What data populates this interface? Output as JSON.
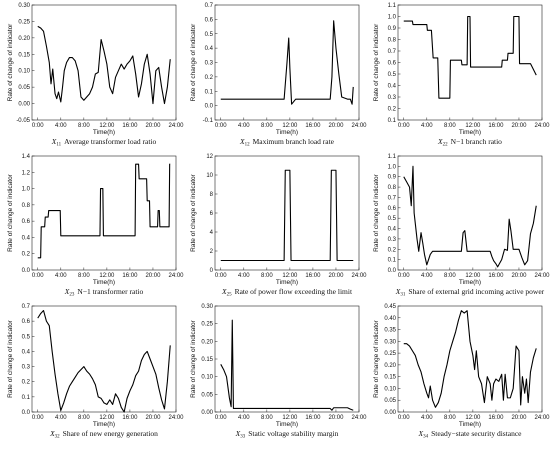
{
  "chart_data": [
    {
      "type": "line",
      "caption": {
        "sym": "X",
        "sub": "11",
        "text": "Average transformer load ratio"
      },
      "xlabel": "Time(h)",
      "ylabel": "Rate of change of indicator",
      "xlim": [
        -1,
        24
      ],
      "ylim": [
        -0.05,
        0.3
      ],
      "yticks": [
        "-0.05",
        "0.00",
        "0.05",
        "0.10",
        "0.15",
        "0.20",
        "0.25",
        "0.30"
      ],
      "ytick_values": [
        -0.05,
        0,
        0.05,
        0.1,
        0.15,
        0.2,
        0.25,
        0.3
      ],
      "xticks": [
        "0:00",
        "4:00",
        "8:00",
        "12:00",
        "16:00",
        "20:00",
        "24:00"
      ],
      "xtick_values": [
        0,
        4,
        8,
        12,
        16,
        20,
        24
      ],
      "x": [
        0,
        0.5,
        1,
        1.5,
        2,
        2.3,
        2.6,
        3,
        3.3,
        3.6,
        4,
        4.3,
        4.6,
        5,
        5.5,
        6,
        6.5,
        7,
        7.5,
        8,
        8.5,
        9,
        9.5,
        10,
        10.5,
        11,
        11.5,
        12,
        12.5,
        13,
        13.5,
        14,
        14.5,
        15,
        15.5,
        16,
        16.5,
        17,
        17.5,
        18,
        18.5,
        19,
        19.5,
        20,
        20.5,
        21,
        21.5,
        22,
        22.5,
        23
      ],
      "y": [
        0.235,
        0.23,
        0.22,
        0.175,
        0.125,
        0.06,
        0.105,
        0.03,
        0.015,
        0.035,
        0.005,
        0.05,
        0.1,
        0.125,
        0.14,
        0.14,
        0.13,
        0.1,
        0.02,
        0.01,
        0.02,
        0.03,
        0.05,
        0.09,
        0.095,
        0.195,
        0.16,
        0.12,
        0.05,
        0.03,
        0.08,
        0.1,
        0.12,
        0.105,
        0.12,
        0.13,
        0.145,
        0.09,
        0.02,
        0.06,
        0.12,
        0.15,
        0.09,
        0.0,
        0.1,
        0.11,
        0.05,
        0.0,
        0.05,
        0.135
      ]
    },
    {
      "type": "line",
      "caption": {
        "sym": "X",
        "sub": "12",
        "text": "Maximum branch load rate"
      },
      "xlabel": "Time(h)",
      "ylabel": "Rate of change of indicator",
      "xlim": [
        -1,
        24
      ],
      "ylim": [
        -0.1,
        0.7
      ],
      "yticks": [
        "-0.1",
        "0.0",
        "0.1",
        "0.2",
        "0.3",
        "0.4",
        "0.5",
        "0.6",
        "0.7"
      ],
      "ytick_values": [
        -0.1,
        0,
        0.1,
        0.2,
        0.3,
        0.4,
        0.5,
        0.6,
        0.7
      ],
      "xticks": [
        "0:00",
        "4:00",
        "8:00",
        "12:00",
        "16:00",
        "20:00",
        "24:00"
      ],
      "xtick_values": [
        0,
        4,
        8,
        12,
        16,
        20,
        24
      ],
      "x": [
        0,
        11,
        11.5,
        11.8,
        12,
        12.3,
        13,
        19,
        19.3,
        19.6,
        20,
        20.5,
        21,
        22,
        22.5,
        22.8,
        23
      ],
      "y": [
        0.045,
        0.045,
        0.3,
        0.47,
        0.26,
        0.01,
        0.045,
        0.045,
        0.2,
        0.59,
        0.4,
        0.22,
        0.06,
        0.045,
        0.045,
        0.01,
        0.13
      ]
    },
    {
      "type": "line",
      "caption": {
        "sym": "X",
        "sub": "22",
        "text": "N−1 branch ratio"
      },
      "xlabel": "Time(h)",
      "ylabel": "Rate of change of indicator",
      "xlim": [
        -1,
        24
      ],
      "ylim": [
        0.1,
        1.1
      ],
      "yticks": [
        "0.1",
        "0.2",
        "0.3",
        "0.4",
        "0.5",
        "0.6",
        "0.7",
        "0.8",
        "0.9",
        "1.0",
        "1.1"
      ],
      "ytick_values": [
        0.1,
        0.2,
        0.3,
        0.4,
        0.5,
        0.6,
        0.7,
        0.8,
        0.9,
        1.0,
        1.1
      ],
      "xticks": [
        "0:00",
        "4:00",
        "8:00",
        "12:00",
        "16:00",
        "20:00",
        "24:00"
      ],
      "xtick_values": [
        0,
        4,
        8,
        12,
        16,
        20,
        24
      ],
      "x": [
        0,
        1.5,
        1.6,
        4,
        4.1,
        4.8,
        5.1,
        5.9,
        6.1,
        8,
        8.1,
        10,
        10.1,
        11,
        11.1,
        11.5,
        11.6,
        17,
        17.1,
        18,
        18.1,
        19,
        19.1,
        20,
        20.1,
        22,
        22.1,
        23
      ],
      "y": [
        0.96,
        0.96,
        0.93,
        0.93,
        0.88,
        0.88,
        0.64,
        0.64,
        0.29,
        0.29,
        0.62,
        0.62,
        0.58,
        0.58,
        1.0,
        1.0,
        0.56,
        0.56,
        0.62,
        0.62,
        0.68,
        0.68,
        1.0,
        1.0,
        0.59,
        0.59,
        0.58,
        0.49
      ]
    },
    {
      "type": "line",
      "caption": {
        "sym": "X",
        "sub": "23",
        "text": "N−1 transformer ratio"
      },
      "xlabel": "Time(h)",
      "ylabel": "Rate of change of indicator",
      "xlim": [
        -1,
        24
      ],
      "ylim": [
        0,
        1.4
      ],
      "yticks": [
        "0.0",
        "0.2",
        "0.4",
        "0.6",
        "0.8",
        "1.0",
        "1.2",
        "1.4"
      ],
      "ytick_values": [
        0,
        0.2,
        0.4,
        0.6,
        0.8,
        1.0,
        1.2,
        1.4
      ],
      "xticks": [
        "0:00",
        "4:00",
        "8:00",
        "12:00",
        "16:00",
        "20:00",
        "24:00"
      ],
      "xtick_values": [
        0,
        4,
        8,
        12,
        16,
        20,
        24
      ],
      "x": [
        0,
        0.5,
        0.6,
        1.2,
        1.3,
        1.8,
        1.9,
        3.9,
        4.0,
        10.8,
        10.9,
        11.3,
        11.4,
        16.9,
        17.0,
        17.5,
        17.6,
        18.3,
        18.4,
        18.9,
        19.0,
        19.4,
        19.5,
        20.8,
        20.9,
        21.1,
        21.2,
        22.8,
        22.9,
        23
      ],
      "y": [
        0.15,
        0.15,
        0.53,
        0.53,
        0.65,
        0.65,
        0.73,
        0.73,
        0.42,
        0.42,
        1.0,
        1.0,
        0.42,
        0.42,
        1.3,
        1.3,
        1.12,
        1.12,
        1.12,
        1.12,
        0.85,
        0.85,
        0.53,
        0.53,
        0.73,
        0.73,
        0.53,
        0.53,
        1.3,
        1.3
      ]
    },
    {
      "type": "line",
      "caption": {
        "sym": "X",
        "sub": "25",
        "text": "Rate of power flow exceeding the limit"
      },
      "xlabel": "Time(h)",
      "ylabel": "Rate of change of indicator",
      "xlim": [
        -1,
        24
      ],
      "ylim": [
        0,
        12
      ],
      "yticks": [
        "0",
        "2",
        "4",
        "6",
        "8",
        "10",
        "12"
      ],
      "ytick_values": [
        0,
        2,
        4,
        6,
        8,
        10,
        12
      ],
      "xticks": [
        "0:00",
        "4:00",
        "8:00",
        "12:00",
        "16:00",
        "20:00",
        "24:00"
      ],
      "xtick_values": [
        0,
        4,
        8,
        12,
        16,
        20,
        24
      ],
      "x": [
        0,
        11,
        11.2,
        12,
        12.2,
        19,
        19.2,
        20,
        20.2,
        23
      ],
      "y": [
        1,
        1,
        10.5,
        10.5,
        1,
        1,
        10.5,
        10.5,
        1,
        1
      ]
    },
    {
      "type": "line",
      "caption": {
        "sym": "X",
        "sub": "31",
        "text": "Share of external grid incoming active power"
      },
      "xlabel": "Time(h)",
      "ylabel": "Rate of change of indicator",
      "xlim": [
        -1,
        24
      ],
      "ylim": [
        0,
        1.1
      ],
      "yticks": [
        "0.0",
        "0.1",
        "0.2",
        "0.3",
        "0.4",
        "0.5",
        "0.6",
        "0.7",
        "0.8",
        "0.9",
        "1.0",
        "1.1"
      ],
      "ytick_values": [
        0,
        0.1,
        0.2,
        0.3,
        0.4,
        0.5,
        0.6,
        0.7,
        0.8,
        0.9,
        1.0,
        1.1
      ],
      "xticks": [
        "0:00",
        "4:00",
        "8:00",
        "12:00",
        "16:00",
        "20:00",
        "24:00"
      ],
      "xtick_values": [
        0,
        4,
        8,
        12,
        16,
        20,
        24
      ],
      "x": [
        0,
        0.5,
        1,
        1.3,
        1.6,
        1.8,
        2,
        2.3,
        2.6,
        3,
        3.3,
        3.6,
        4,
        4.3,
        4.6,
        5,
        10,
        10.3,
        10.6,
        11,
        15,
        15.3,
        15.6,
        16,
        16.3,
        16.6,
        17,
        17.5,
        18,
        18.3,
        18.6,
        19,
        20,
        20.5,
        21,
        21.5,
        22,
        22.5,
        23
      ],
      "y": [
        0.9,
        0.85,
        0.8,
        0.62,
        1.0,
        0.55,
        0.45,
        0.3,
        0.18,
        0.36,
        0.26,
        0.15,
        0.05,
        0.1,
        0.15,
        0.18,
        0.18,
        0.36,
        0.38,
        0.18,
        0.18,
        0.13,
        0.09,
        0.06,
        0.03,
        0.06,
        0.1,
        0.2,
        0.19,
        0.49,
        0.38,
        0.2,
        0.2,
        0.12,
        0.05,
        0.09,
        0.35,
        0.45,
        0.62
      ]
    },
    {
      "type": "line",
      "caption": {
        "sym": "X",
        "sub": "32",
        "text": "Share of new energy generation"
      },
      "xlabel": "Time(h)",
      "ylabel": "Rate of change of indicator",
      "xlim": [
        -1,
        24
      ],
      "ylim": [
        0,
        0.7
      ],
      "yticks": [
        "0.0",
        "0.1",
        "0.2",
        "0.3",
        "0.4",
        "0.5",
        "0.6",
        "0.7"
      ],
      "ytick_values": [
        0,
        0.1,
        0.2,
        0.3,
        0.4,
        0.5,
        0.6,
        0.7
      ],
      "xticks": [
        "0:00",
        "4:00",
        "8:00",
        "12:00",
        "16:00",
        "20:00",
        "24:00"
      ],
      "xtick_values": [
        0,
        4,
        8,
        12,
        16,
        20,
        24
      ],
      "x": [
        0,
        0.5,
        1,
        1.5,
        2,
        2.5,
        3,
        3.5,
        4,
        4.5,
        5,
        5.5,
        6,
        6.5,
        7,
        7.5,
        8,
        8.5,
        9,
        9.5,
        10,
        10.5,
        11,
        11.5,
        12,
        12.5,
        13,
        13.5,
        14,
        14.5,
        15,
        15.5,
        16,
        16.5,
        17,
        17.5,
        18,
        18.5,
        19,
        19.5,
        20,
        20.5,
        21,
        21.5,
        22,
        22.5,
        23
      ],
      "y": [
        0.62,
        0.65,
        0.67,
        0.6,
        0.57,
        0.4,
        0.25,
        0.12,
        0.01,
        0.06,
        0.12,
        0.17,
        0.2,
        0.23,
        0.26,
        0.28,
        0.3,
        0.27,
        0.25,
        0.22,
        0.18,
        0.1,
        0.09,
        0.06,
        0.05,
        0.08,
        0.05,
        0.12,
        0.09,
        0.03,
        0.0,
        0.09,
        0.14,
        0.18,
        0.24,
        0.27,
        0.34,
        0.38,
        0.4,
        0.35,
        0.3,
        0.25,
        0.16,
        0.08,
        0.02,
        0.2,
        0.44
      ]
    },
    {
      "type": "line",
      "caption": {
        "sym": "X",
        "sub": "33",
        "text": "Static voltage stability margin"
      },
      "xlabel": "Time(h)",
      "ylabel": "Rate of change of indicator",
      "xlim": [
        -1,
        24
      ],
      "ylim": [
        0,
        0.3
      ],
      "yticks": [
        "0.00",
        "0.05",
        "0.10",
        "0.15",
        "0.20",
        "0.25",
        "0.30"
      ],
      "ytick_values": [
        0,
        0.05,
        0.1,
        0.15,
        0.2,
        0.25,
        0.3
      ],
      "xticks": [
        "0:00",
        "4:00",
        "8:00",
        "12:00",
        "16:00",
        "20:00",
        "24:00"
      ],
      "xtick_values": [
        0,
        4,
        8,
        12,
        16,
        20,
        24
      ],
      "x": [
        0,
        0.5,
        1,
        1.5,
        1.8,
        2,
        2.2,
        3,
        19,
        19.3,
        19.6,
        21,
        22,
        22.5,
        23
      ],
      "y": [
        0.135,
        0.12,
        0.1,
        0.04,
        0.015,
        0.26,
        0.01,
        0.01,
        0.01,
        0.005,
        0.012,
        0.012,
        0.012,
        0.008,
        0.005
      ]
    },
    {
      "type": "line",
      "caption": {
        "sym": "X",
        "sub": "34",
        "text": "Steady−state security distance"
      },
      "xlabel": "Time(h)",
      "ylabel": "Rate of change of indicator",
      "xlim": [
        -1,
        24
      ],
      "ylim": [
        0,
        0.45
      ],
      "yticks": [
        "0.00",
        "0.05",
        "0.10",
        "0.15",
        "0.20",
        "0.25",
        "0.30",
        "0.35",
        "0.40",
        "0.45"
      ],
      "ytick_values": [
        0,
        0.05,
        0.1,
        0.15,
        0.2,
        0.25,
        0.3,
        0.35,
        0.4,
        0.45
      ],
      "xticks": [
        "0:00",
        "4:00",
        "8:00",
        "12:00",
        "16:00",
        "20:00",
        "24:00"
      ],
      "xtick_values": [
        0,
        4,
        8,
        12,
        16,
        20,
        24
      ],
      "x": [
        0,
        0.5,
        1,
        1.5,
        2,
        2.5,
        3,
        3.5,
        4,
        4.3,
        4.6,
        5,
        5.5,
        6,
        6.5,
        7,
        7.5,
        8,
        8.5,
        9,
        9.5,
        10,
        10.5,
        11,
        11.5,
        12,
        12.3,
        12.6,
        13,
        13.5,
        14,
        14.5,
        15,
        15.3,
        15.6,
        16,
        16.5,
        17,
        17.3,
        17.6,
        18,
        18.5,
        19,
        19.5,
        20,
        20.3,
        20.6,
        21,
        21.3,
        21.6,
        22,
        22.5,
        23
      ],
      "y": [
        0.29,
        0.29,
        0.28,
        0.26,
        0.24,
        0.2,
        0.17,
        0.12,
        0.08,
        0.06,
        0.11,
        0.05,
        0.02,
        0.04,
        0.08,
        0.15,
        0.2,
        0.26,
        0.3,
        0.34,
        0.39,
        0.43,
        0.42,
        0.43,
        0.3,
        0.24,
        0.18,
        0.26,
        0.15,
        0.12,
        0.04,
        0.15,
        0.12,
        0.05,
        0.12,
        0.14,
        0.13,
        0.16,
        0.05,
        0.16,
        0.06,
        0.06,
        0.1,
        0.28,
        0.26,
        0.03,
        0.15,
        0.08,
        0.14,
        0.04,
        0.17,
        0.23,
        0.27
      ]
    }
  ]
}
